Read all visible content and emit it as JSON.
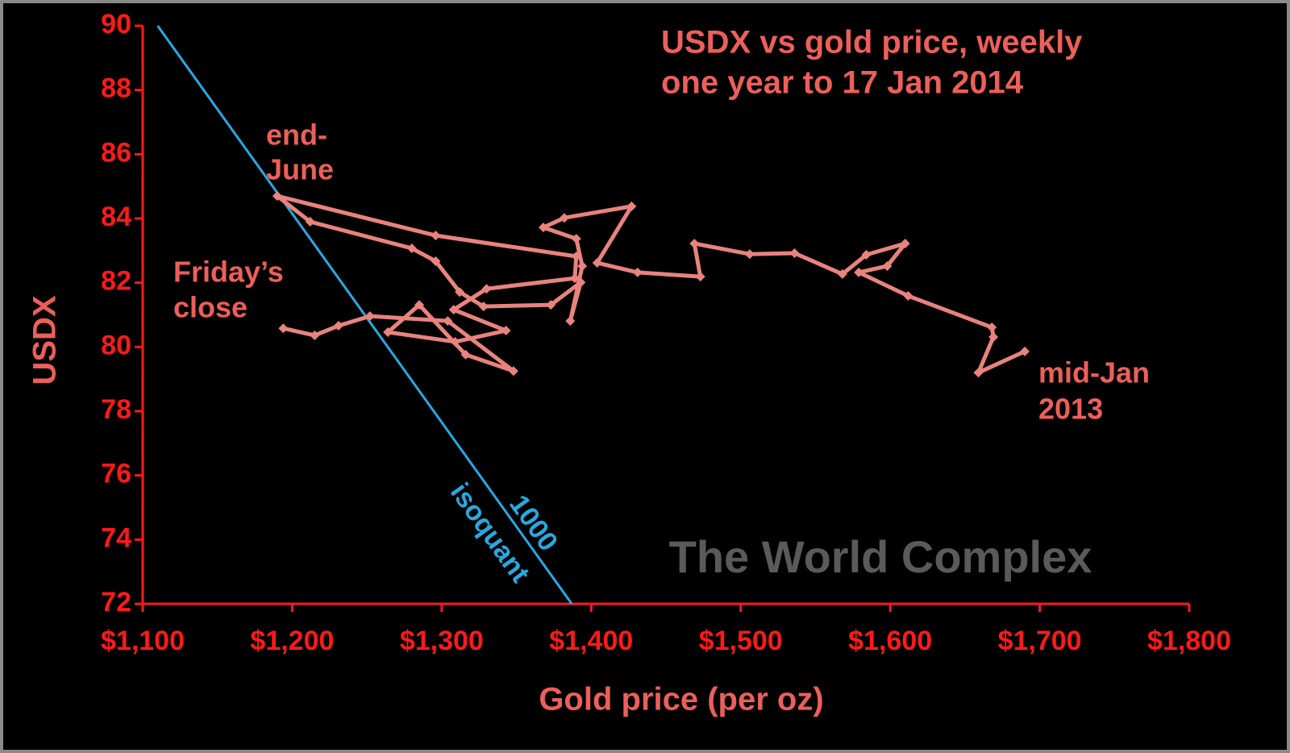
{
  "chart_data": {
    "type": "line",
    "title_lines": [
      "USDX vs gold price, weekly",
      "one year to 17 Jan 2014"
    ],
    "x_label": "Gold price (per oz)",
    "y_label": "USDX",
    "xlim": [
      1100,
      1800
    ],
    "ylim": [
      72,
      90
    ],
    "xticks": [
      {
        "value": 1100,
        "label": "$1,100"
      },
      {
        "value": 1200,
        "label": "$1,200"
      },
      {
        "value": 1300,
        "label": "$1,300"
      },
      {
        "value": 1400,
        "label": "$1,400"
      },
      {
        "value": 1500,
        "label": "$1,500"
      },
      {
        "value": 1600,
        "label": "$1,600"
      },
      {
        "value": 1700,
        "label": "$1,700"
      },
      {
        "value": 1800,
        "label": "$1,800"
      }
    ],
    "yticks": [
      72,
      74,
      76,
      78,
      80,
      82,
      84,
      86,
      88,
      90
    ],
    "series": [
      {
        "color": "#e8837e",
        "x": [
          1690,
          1659,
          1669,
          1668,
          1612,
          1579,
          1598,
          1610,
          1584,
          1568,
          1536,
          1506,
          1469,
          1473,
          1431,
          1404,
          1427,
          1382,
          1368,
          1390,
          1394,
          1386,
          1393,
          1373,
          1328,
          1312,
          1296,
          1280,
          1212,
          1190,
          1296,
          1390,
          1389,
          1330,
          1308,
          1343,
          1309,
          1264,
          1285,
          1316,
          1348,
          1304,
          1252,
          1231,
          1215,
          1194
        ],
        "values": [
          79.86,
          79.2,
          80.31,
          80.61,
          81.59,
          82.32,
          82.52,
          83.22,
          82.87,
          82.27,
          82.92,
          82.89,
          83.22,
          82.19,
          82.32,
          82.62,
          84.38,
          84.02,
          83.72,
          83.37,
          82.52,
          80.81,
          82.01,
          81.31,
          81.26,
          81.71,
          82.67,
          83.07,
          83.9,
          84.7,
          83.47,
          82.82,
          82.14,
          81.81,
          81.16,
          80.51,
          80.16,
          80.46,
          81.31,
          79.76,
          79.25,
          80.81,
          80.96,
          80.66,
          80.36,
          80.58
        ]
      }
    ],
    "isoquant": {
      "color": "#29a8e0",
      "label_lines": [
        "1000",
        "isoquant"
      ],
      "x": [
        1110,
        1387
      ],
      "values": [
        90,
        72
      ]
    },
    "annotations": [
      {
        "lines": [
          "end-",
          "June"
        ]
      },
      {
        "lines": [
          "Friday’s",
          "close"
        ]
      },
      {
        "lines": [
          "mid-Jan",
          "2013"
        ]
      }
    ],
    "watermark": "The World Complex"
  }
}
